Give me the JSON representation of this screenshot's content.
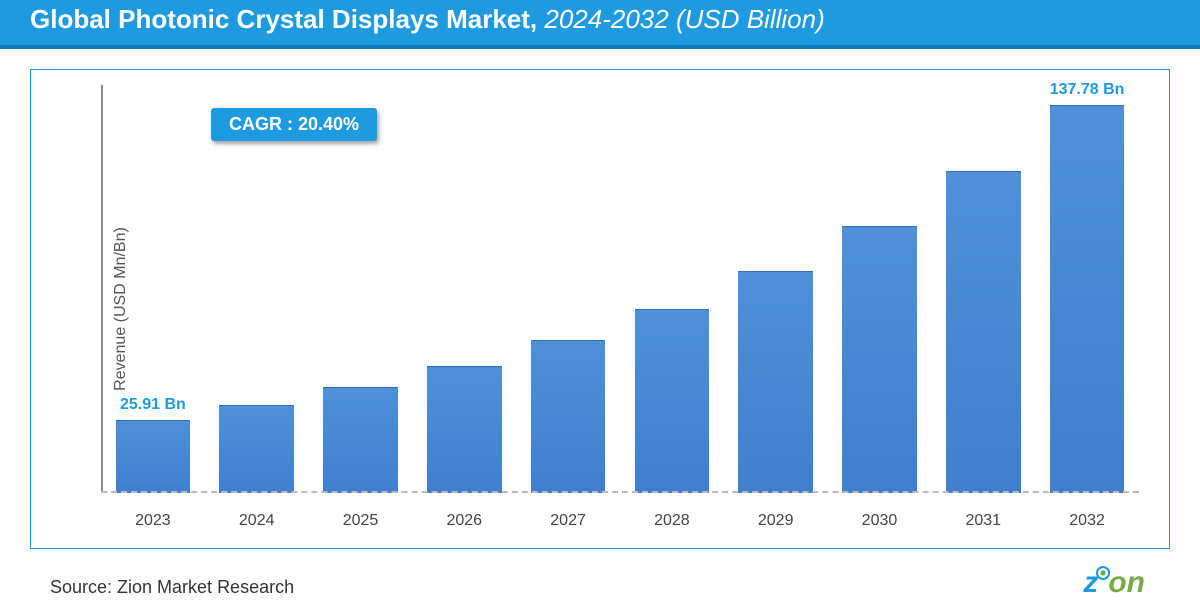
{
  "header": {
    "title_main": "Global Photonic Crystal Displays Market,",
    "title_range": " 2024-2032 ",
    "title_unit": "(USD Billion)",
    "bg_color": "#1e9be0",
    "text_color": "#ffffff",
    "fontsize": 26
  },
  "cagr_badge": {
    "label": "CAGR : ",
    "value": "20.40%",
    "bg_color": "#1e9be0",
    "text_color": "#ffffff",
    "fontsize": 18
  },
  "chart": {
    "type": "bar",
    "ylabel": "Revenue (USD Mn/Bn)",
    "ylabel_fontsize": 16,
    "ylabel_color": "#555555",
    "categories": [
      "2023",
      "2024",
      "2025",
      "2026",
      "2027",
      "2028",
      "2029",
      "2030",
      "2031",
      "2032"
    ],
    "values": [
      25.91,
      31.2,
      37.5,
      45.2,
      54.4,
      65.5,
      78.9,
      95.0,
      114.4,
      137.78
    ],
    "ylim": [
      0,
      145
    ],
    "bar_color": "#4f90d9",
    "bar_gradient_bottom": "#3f7fce",
    "bar_border_top": "#2f6fbf",
    "bar_width": 0.72,
    "baseline_color": "#bbbbbb",
    "baseline_style": "dashed",
    "axis_line_color": "#888888",
    "xtick_fontsize": 16,
    "xtick_color": "#444444",
    "value_labels": [
      {
        "index": 0,
        "text": "25.91 Bn",
        "color": "#1e9be0",
        "fontsize": 16
      },
      {
        "index": 9,
        "text": "137.78 Bn",
        "color": "#1e9be0",
        "fontsize": 16
      }
    ],
    "background_color": "#ffffff",
    "border_color": "#1e9be0"
  },
  "source": {
    "text": "Source: Zion Market Research",
    "fontsize": 18,
    "color": "#333333"
  },
  "brand": {
    "text": "zion",
    "color_primary": "#1e9be0",
    "color_secondary": "#7aa94a",
    "fontsize": 30
  }
}
